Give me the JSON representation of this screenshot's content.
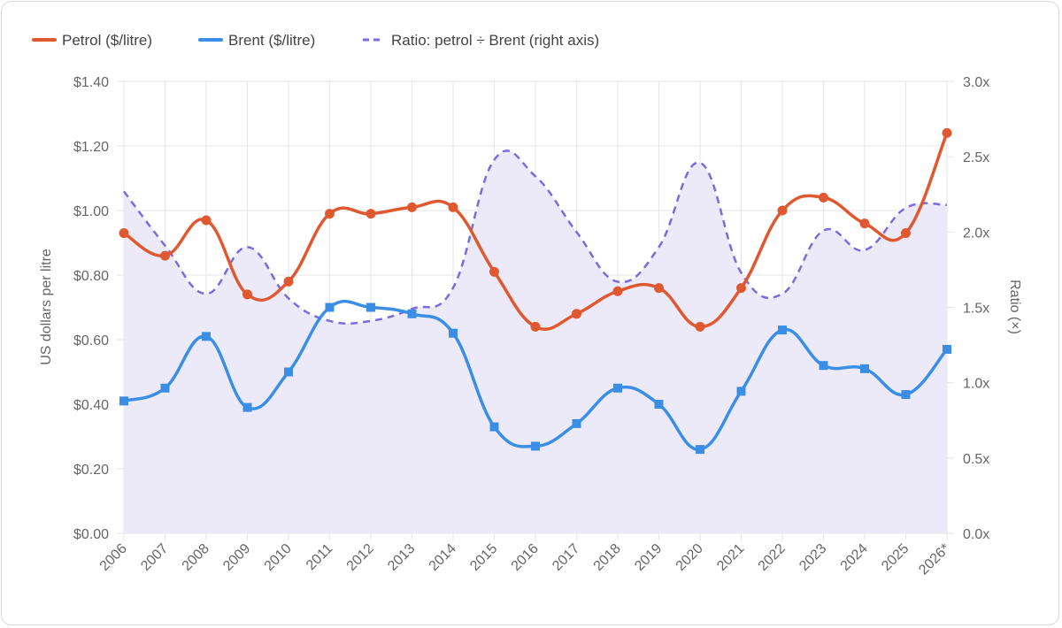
{
  "chart_data": {
    "type": "line",
    "categories": [
      "2006",
      "2007",
      "2008",
      "2009",
      "2010",
      "2011",
      "2012",
      "2013",
      "2014",
      "2015",
      "2016",
      "2017",
      "2018",
      "2019",
      "2020",
      "2021",
      "2022",
      "2023",
      "2024",
      "2025",
      "2026*"
    ],
    "series": [
      {
        "name": "Petrol ($/litre)",
        "axis": "left",
        "color": "#e0582f",
        "marker": "circle",
        "values": [
          0.93,
          0.86,
          0.97,
          0.74,
          0.78,
          0.99,
          0.99,
          1.01,
          1.01,
          0.81,
          0.64,
          0.68,
          0.75,
          0.76,
          0.64,
          0.76,
          1.0,
          1.04,
          0.96,
          0.93,
          1.24
        ]
      },
      {
        "name": "Brent ($/litre)",
        "axis": "left",
        "color": "#3a8ee6",
        "marker": "square",
        "values": [
          0.41,
          0.45,
          0.61,
          0.39,
          0.5,
          0.7,
          0.7,
          0.68,
          0.62,
          0.33,
          0.27,
          0.34,
          0.45,
          0.4,
          0.26,
          0.44,
          0.63,
          0.52,
          0.51,
          0.43,
          0.57
        ]
      },
      {
        "name": "Ratio: petrol ÷ Brent (right axis)",
        "axis": "right",
        "color": "#7b6be0",
        "dashed": true,
        "fill": "#eceaf8",
        "values": [
          2.27,
          1.91,
          1.59,
          1.9,
          1.56,
          1.41,
          1.41,
          1.49,
          1.63,
          2.48,
          2.37,
          2.0,
          1.67,
          1.9,
          2.46,
          1.73,
          1.59,
          2.01,
          1.88,
          2.16,
          2.18
        ]
      }
    ],
    "y_left": {
      "label": "US dollars per litre",
      "min": 0,
      "max": 1.4,
      "ticks": [
        "$0.00",
        "$0.20",
        "$0.40",
        "$0.60",
        "$0.80",
        "$1.00",
        "$1.20",
        "$1.40"
      ],
      "tick_values": [
        0,
        0.2,
        0.4,
        0.6,
        0.8,
        1.0,
        1.2,
        1.4
      ]
    },
    "y_right": {
      "label": "Ratio (×)",
      "min": 0,
      "max": 3.0,
      "ticks": [
        "0.0x",
        "0.5x",
        "1.0x",
        "1.5x",
        "2.0x",
        "2.5x",
        "3.0x"
      ],
      "tick_values": [
        0,
        0.5,
        1.0,
        1.5,
        2.0,
        2.5,
        3.0
      ]
    },
    "grid": true,
    "legend_position": "top-left"
  }
}
